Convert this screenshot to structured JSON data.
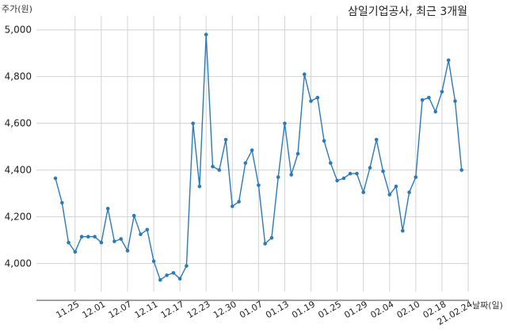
{
  "chart_data": {
    "type": "line",
    "title": "삼일기업공사, 최근 3개월",
    "ylabel": "주가(원)",
    "xlabel": "날짜(일)",
    "ylim": [
      3880,
      5060
    ],
    "yticks": [
      4000,
      4200,
      4400,
      4600,
      4800,
      5000
    ],
    "ytick_labels": [
      "4,000",
      "4,200",
      "4,400",
      "4,600",
      "4,800",
      "5,000"
    ],
    "grid": true,
    "line_color": "#2b7bb9",
    "xtick_labels": [
      "11.25",
      "12.01",
      "12.07",
      "12.11",
      "12.17",
      "12.23",
      "12.30",
      "01.07",
      "01.13",
      "01.19",
      "01.25",
      "01.29",
      "02.04",
      "02.10",
      "02.18",
      "21.02.24"
    ],
    "xtick_index": [
      4,
      8,
      12,
      16,
      20,
      24,
      28,
      32,
      36,
      40,
      44,
      48,
      52,
      56,
      60,
      64
    ],
    "series": [
      {
        "values": [
          4365,
          4260,
          4090,
          4050,
          4115,
          4115,
          4115,
          4090,
          4235,
          4095,
          4105,
          4055,
          4205,
          4125,
          4145,
          4010,
          3930,
          3950,
          3960,
          3935,
          3990,
          4600,
          4330,
          4980,
          4415,
          4400,
          4530,
          4245,
          4265,
          4430,
          4485,
          4335,
          4085,
          4110,
          4370,
          4600,
          4380,
          4470,
          4810,
          4695,
          4710,
          4525,
          4430,
          4355,
          4365,
          4385,
          4385,
          4305,
          4410,
          4530,
          4395,
          4295,
          4330,
          4140,
          4305,
          4370,
          4700,
          4710,
          4650,
          4735,
          4870,
          4695,
          4400
        ]
      }
    ]
  }
}
